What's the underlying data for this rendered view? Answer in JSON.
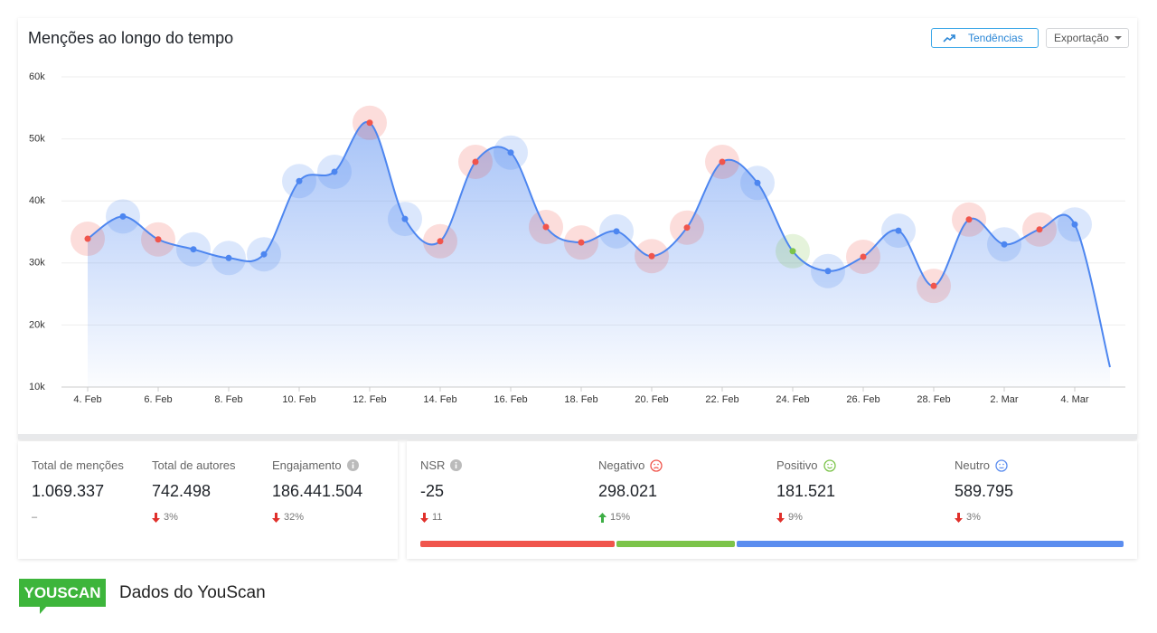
{
  "header": {
    "title": "Menções ao longo do tempo",
    "buttons": [
      "Tendências",
      "Exportação"
    ]
  },
  "chart_data": {
    "type": "line",
    "categories": [
      "4. Feb",
      null,
      "6. Feb",
      null,
      "8. Feb",
      null,
      "10. Feb",
      null,
      "12. Feb",
      null,
      "14. Feb",
      null,
      "16. Feb",
      null,
      "18. Feb",
      null,
      "20. Feb",
      null,
      "22. Feb",
      null,
      "24. Feb",
      null,
      "26. Feb",
      null,
      "28. Feb",
      null,
      "2. Mar",
      null,
      "4. Mar",
      null
    ],
    "values": [
      33900,
      37500,
      33800,
      32200,
      30800,
      31400,
      43200,
      44700,
      52600,
      37100,
      33500,
      46300,
      47800,
      35800,
      33300,
      35100,
      31100,
      35700,
      46300,
      42900,
      31900,
      28700,
      31000,
      35200,
      26300,
      37000,
      33000,
      35400,
      36200,
      13200
    ],
    "color": "#4d86f0",
    "point_colors": [
      "#f0554c",
      "#4d86f0",
      "#f0554c",
      "#4d86f0",
      "#4d86f0",
      "#4d86f0",
      "#4d86f0",
      "#4d86f0",
      "#f0554c",
      "#4d86f0",
      "#f0554c",
      "#f0554c",
      "#4d86f0",
      "#f0554c",
      "#f0554c",
      "#4d86f0",
      "#f0554c",
      "#f0554c",
      "#f0554c",
      "#4d86f0",
      "#7cc44a",
      "#4d86f0",
      "#f0554c",
      "#4d86f0",
      "#f0554c",
      "#f0554c",
      "#4d86f0",
      "#f0554c",
      "#4d86f0",
      null
    ],
    "ylim": [
      10000,
      60000
    ],
    "yticks": [
      {
        "value": 10000,
        "label": "10k"
      },
      {
        "value": 20000,
        "label": "20k"
      },
      {
        "value": 30000,
        "label": "30k"
      },
      {
        "value": 40000,
        "label": "40k"
      },
      {
        "value": 50000,
        "label": "50k"
      },
      {
        "value": 60000,
        "label": "60k"
      }
    ],
    "grid": true
  },
  "stats": {
    "left": [
      {
        "label": "Total de menções",
        "value": "1.069.337",
        "change": "–"
      },
      {
        "label": "Total de autores",
        "value": "742.498",
        "change": "3%",
        "trend": "down"
      },
      {
        "label": "Engajamento",
        "value": "186.441.504",
        "change": "32%",
        "trend": "down",
        "info": true
      }
    ],
    "right": [
      {
        "label": "NSR",
        "value": "-25",
        "change": "11",
        "trend": "down",
        "info": true
      },
      {
        "label": "Negativo",
        "value": {
          "value": 298021,
          "label": "298.021"
        },
        "change": "15%",
        "trend": "up",
        "face": "sad",
        "color": "#f0554c"
      },
      {
        "label": "Positivo",
        "value": {
          "value": 181521,
          "label": "181.521"
        },
        "change": "9%",
        "trend": "down",
        "face": "happy",
        "color": "#7cc44a"
      },
      {
        "label": "Neutro",
        "value": {
          "value": 589795,
          "label": "589.795"
        },
        "change": "3%",
        "trend": "down",
        "face": "neutral",
        "color": "#5b8def"
      }
    ]
  },
  "footer": {
    "logo": "YOUSCAN",
    "text": "Dados do YouScan"
  }
}
